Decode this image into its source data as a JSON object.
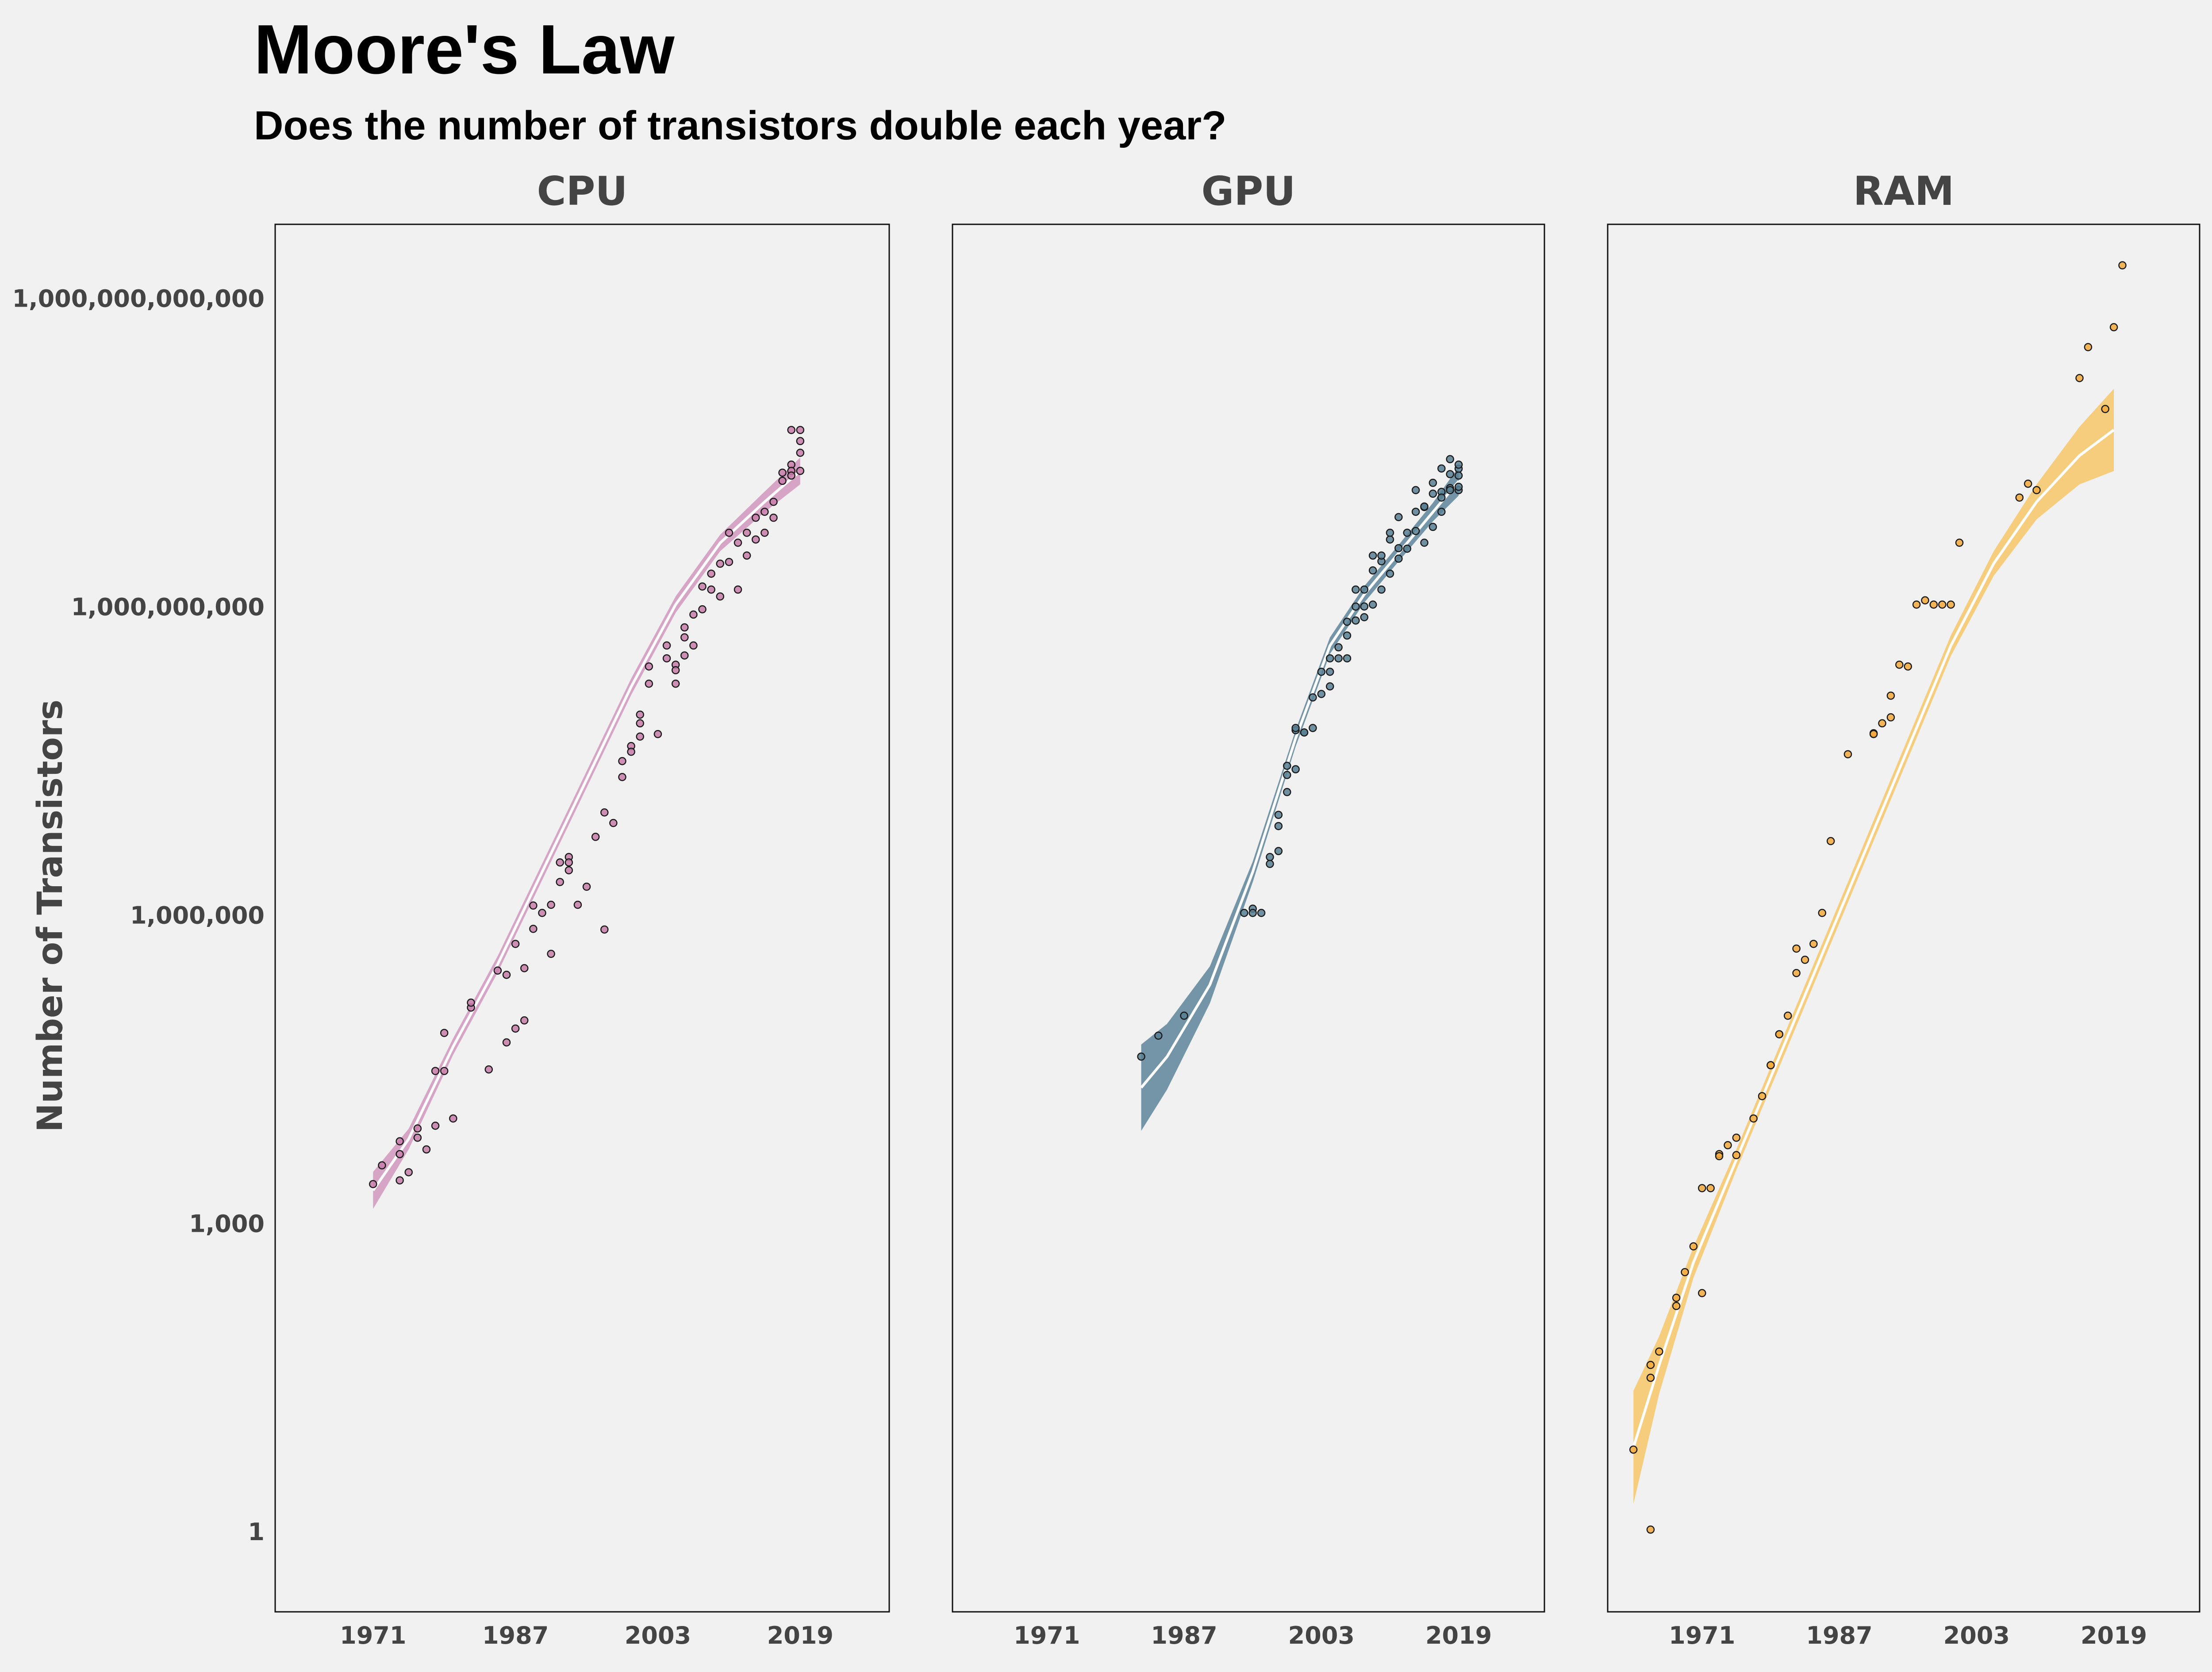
{
  "title": "Moore's Law",
  "subtitle": "Does the number of transistors double each year?",
  "chart_data": {
    "type": "scatter",
    "title": "Moore's Law",
    "subtitle": "Does the number of transistors double each year?",
    "ylabel": "Number of Transistors",
    "xlabel": "",
    "yscale": "log10",
    "ylim_log10": [
      -0.8,
      12.7
    ],
    "xlim": [
      1960,
      2029
    ],
    "x_ticks": [
      "1971",
      "1987",
      "2003",
      "2019"
    ],
    "y_ticks": [
      "1",
      "1,000",
      "1,000,000",
      "1,000,000,000",
      "1,000,000,000,000"
    ],
    "grid": false,
    "legend": "none",
    "panels": [
      {
        "name": "CPU",
        "color": "#c77ca9",
        "fill": "#d4a0c2",
        "smooth_log10": [
          [
            1971,
            3.3
          ],
          [
            1975,
            3.8
          ],
          [
            1980,
            4.7
          ],
          [
            1985,
            5.5
          ],
          [
            1990,
            6.4
          ],
          [
            1995,
            7.3
          ],
          [
            2000,
            8.2
          ],
          [
            2005,
            9.0
          ],
          [
            2010,
            9.6
          ],
          [
            2015,
            10.0
          ],
          [
            2019,
            10.3
          ]
        ],
        "band_half_width": [
          0.18,
          0.1,
          0.08,
          0.08,
          0.08,
          0.08,
          0.08,
          0.08,
          0.08,
          0.1,
          0.13
        ],
        "points": [
          [
            1971,
            2300
          ],
          [
            1972,
            3500
          ],
          [
            1974,
            2500
          ],
          [
            1974,
            4500
          ],
          [
            1974,
            6000
          ],
          [
            1975,
            3000
          ],
          [
            1976,
            6500
          ],
          [
            1976,
            8000
          ],
          [
            1977,
            5000
          ],
          [
            1978,
            8500
          ],
          [
            1978,
            29000
          ],
          [
            1979,
            29000
          ],
          [
            1979,
            68000
          ],
          [
            1980,
            10000
          ],
          [
            1982,
            120000
          ],
          [
            1982,
            134000
          ],
          [
            1984,
            30000
          ],
          [
            1985,
            275000
          ],
          [
            1986,
            55000
          ],
          [
            1986,
            250000
          ],
          [
            1987,
            500000
          ],
          [
            1987,
            75000
          ],
          [
            1988,
            90000
          ],
          [
            1988,
            290000
          ],
          [
            1989,
            1180000
          ],
          [
            1989,
            700000
          ],
          [
            1990,
            1000000
          ],
          [
            1991,
            1200000
          ],
          [
            1991,
            400000
          ],
          [
            1992,
            2000000
          ],
          [
            1992,
            3100000
          ],
          [
            1993,
            2600000
          ],
          [
            1993,
            3500000
          ],
          [
            1993,
            3100000
          ],
          [
            1994,
            1200000
          ],
          [
            1995,
            1800000
          ],
          [
            1996,
            5500000
          ],
          [
            1997,
            9500000
          ],
          [
            1997,
            690000
          ],
          [
            1998,
            7500000
          ],
          [
            1999,
            21000000
          ],
          [
            1999,
            30000000
          ],
          [
            2000,
            42000000
          ],
          [
            2000,
            37000000
          ],
          [
            2001,
            52000000
          ],
          [
            2001,
            70000000
          ],
          [
            2001,
            85000000
          ],
          [
            2002,
            250000000
          ],
          [
            2002,
            170000000
          ],
          [
            2003,
            55000000
          ],
          [
            2004,
            400000000
          ],
          [
            2004,
            300000000
          ],
          [
            2005,
            260000000
          ],
          [
            2005,
            230000000
          ],
          [
            2005,
            170000000
          ],
          [
            2006,
            600000000
          ],
          [
            2006,
            320000000
          ],
          [
            2006,
            480000000
          ],
          [
            2007,
            800000000
          ],
          [
            2007,
            400000000
          ],
          [
            2008,
            1500000000
          ],
          [
            2008,
            900000000
          ],
          [
            2009,
            2000000000
          ],
          [
            2009,
            1400000000
          ],
          [
            2010,
            1200000000
          ],
          [
            2010,
            2500000000
          ],
          [
            2011,
            5000000000
          ],
          [
            2011,
            2600000000
          ],
          [
            2012,
            4000000000
          ],
          [
            2012,
            1400000000
          ],
          [
            2013,
            5000000000
          ],
          [
            2013,
            3000000000
          ],
          [
            2014,
            7000000000
          ],
          [
            2014,
            4300000000
          ],
          [
            2015,
            8000000000
          ],
          [
            2015,
            5000000000
          ],
          [
            2016,
            10000000000
          ],
          [
            2016,
            7000000000
          ],
          [
            2017,
            16000000000
          ],
          [
            2017,
            19200000000
          ],
          [
            2018,
            23000000000
          ],
          [
            2018,
            50000000000
          ],
          [
            2018,
            20000000000
          ],
          [
            2018,
            18000000000
          ],
          [
            2019,
            39000000000
          ],
          [
            2019,
            20000000000
          ],
          [
            2019,
            30000000000
          ],
          [
            2019,
            50000000000
          ]
        ]
      },
      {
        "name": "GPU",
        "color": "#587f93",
        "fill": "#6d8fa2",
        "smooth_log10": [
          [
            1982,
            4.3
          ],
          [
            1985,
            4.6
          ],
          [
            1990,
            5.3
          ],
          [
            1995,
            6.4
          ],
          [
            2000,
            7.7
          ],
          [
            2004,
            8.6
          ],
          [
            2008,
            9.1
          ],
          [
            2012,
            9.5
          ],
          [
            2016,
            9.9
          ],
          [
            2019,
            10.2
          ]
        ],
        "band_half_width": [
          0.42,
          0.32,
          0.18,
          0.1,
          0.08,
          0.08,
          0.08,
          0.08,
          0.09,
          0.14
        ],
        "points": [
          [
            1982,
            40000
          ],
          [
            1984,
            64000
          ],
          [
            1987,
            100000
          ],
          [
            1994,
            1000000
          ],
          [
            1995,
            1100000
          ],
          [
            1995,
            1000000
          ],
          [
            1996,
            1000000
          ],
          [
            1997,
            3000000
          ],
          [
            1997,
            3500000
          ],
          [
            1998,
            4000000
          ],
          [
            1998,
            7000000
          ],
          [
            1998,
            9000000
          ],
          [
            1999,
            15000000
          ],
          [
            1999,
            22000000
          ],
          [
            1999,
            27000000
          ],
          [
            2000,
            25000000
          ],
          [
            2000,
            60000000
          ],
          [
            2000,
            63000000
          ],
          [
            2001,
            57000000
          ],
          [
            2001,
            57000000
          ],
          [
            2002,
            125000000
          ],
          [
            2002,
            63000000
          ],
          [
            2003,
            135000000
          ],
          [
            2003,
            222000000
          ],
          [
            2004,
            222000000
          ],
          [
            2004,
            300000000
          ],
          [
            2004,
            160000000
          ],
          [
            2005,
            300000000
          ],
          [
            2005,
            384000000
          ],
          [
            2006,
            500000000
          ],
          [
            2006,
            681000000
          ],
          [
            2006,
            300000000
          ],
          [
            2007,
            700000000
          ],
          [
            2007,
            956000000
          ],
          [
            2007,
            1400000000
          ],
          [
            2008,
            754000000
          ],
          [
            2008,
            1400000000
          ],
          [
            2008,
            959000000
          ],
          [
            2009,
            1000000000
          ],
          [
            2009,
            2150000000
          ],
          [
            2009,
            3000000000
          ],
          [
            2010,
            2640000000
          ],
          [
            2010,
            3000000000
          ],
          [
            2010,
            1400000000
          ],
          [
            2011,
            4300000000
          ],
          [
            2011,
            5000000000
          ],
          [
            2011,
            2000000000
          ],
          [
            2012,
            7100000000
          ],
          [
            2012,
            3540000000
          ],
          [
            2012,
            2800000000
          ],
          [
            2013,
            5000000000
          ],
          [
            2013,
            3500000000
          ],
          [
            2014,
            5200000000
          ],
          [
            2014,
            8000000000
          ],
          [
            2014,
            13000000000
          ],
          [
            2015,
            8900000000
          ],
          [
            2015,
            9000000000
          ],
          [
            2015,
            4000000000
          ],
          [
            2016,
            15300000000
          ],
          [
            2016,
            12000000000
          ],
          [
            2016,
            5700000000
          ],
          [
            2017,
            21100000000
          ],
          [
            2017,
            8000000000
          ],
          [
            2017,
            12500000000
          ],
          [
            2017,
            11000000000
          ],
          [
            2018,
            18600000000
          ],
          [
            2018,
            13600000000
          ],
          [
            2018,
            26000000000
          ],
          [
            2018,
            13000000000
          ],
          [
            2019,
            21000000000
          ],
          [
            2019,
            18000000000
          ],
          [
            2019,
            13000000000
          ],
          [
            2019,
            14000000000
          ],
          [
            2019,
            23000000000
          ]
        ]
      },
      {
        "name": "RAM",
        "color": "#f3a93c",
        "fill": "#f6c976",
        "smooth_log10": [
          [
            1963,
            0.8
          ],
          [
            1966,
            1.6
          ],
          [
            1970,
            2.6
          ],
          [
            1975,
            3.6
          ],
          [
            1980,
            4.6
          ],
          [
            1985,
            5.6
          ],
          [
            1990,
            6.6
          ],
          [
            1995,
            7.6
          ],
          [
            2000,
            8.6
          ],
          [
            2005,
            9.4
          ],
          [
            2010,
            10.0
          ],
          [
            2015,
            10.45
          ],
          [
            2019,
            10.7
          ]
        ],
        "band_half_width": [
          0.55,
          0.28,
          0.15,
          0.1,
          0.1,
          0.1,
          0.1,
          0.1,
          0.1,
          0.12,
          0.17,
          0.28,
          0.4
        ],
        "points": [
          [
            1963,
            6
          ],
          [
            1965,
            1
          ],
          [
            1965,
            30
          ],
          [
            1965,
            40
          ],
          [
            1966,
            54
          ],
          [
            1968,
            150
          ],
          [
            1968,
            180
          ],
          [
            1969,
            320
          ],
          [
            1970,
            570
          ],
          [
            1971,
            2100
          ],
          [
            1971,
            200
          ],
          [
            1972,
            2100
          ],
          [
            1973,
            4500
          ],
          [
            1973,
            4300
          ],
          [
            1974,
            5500
          ],
          [
            1975,
            6500
          ],
          [
            1975,
            4400
          ],
          [
            1977,
            10000
          ],
          [
            1978,
            16500
          ],
          [
            1979,
            33000
          ],
          [
            1979,
            33000
          ],
          [
            1980,
            66000
          ],
          [
            1980,
            66000
          ],
          [
            1981,
            100000
          ],
          [
            1982,
            260000
          ],
          [
            1982,
            450000
          ],
          [
            1983,
            350000
          ],
          [
            1984,
            500000
          ],
          [
            1985,
            1000000
          ],
          [
            1986,
            5000000
          ],
          [
            1988,
            35000000
          ],
          [
            1991,
            56000000
          ],
          [
            1991,
            55000000
          ],
          [
            1992,
            70000000
          ],
          [
            1993,
            80000000
          ],
          [
            1993,
            130000000
          ],
          [
            1994,
            260000000
          ],
          [
            1995,
            250000000
          ],
          [
            1996,
            1000000000
          ],
          [
            1997,
            1100000000
          ],
          [
            1998,
            1000000000
          ],
          [
            1999,
            1000000000
          ],
          [
            2000,
            1000000000
          ],
          [
            2001,
            4000000000
          ],
          [
            2008,
            11000000000
          ],
          [
            2009,
            15000000000
          ],
          [
            2010,
            13000000000
          ],
          [
            2015,
            160000000000
          ],
          [
            2016,
            320000000000
          ],
          [
            2018,
            80000000000
          ],
          [
            2019,
            500000000000
          ],
          [
            2020,
            2000000000000
          ]
        ]
      }
    ]
  }
}
